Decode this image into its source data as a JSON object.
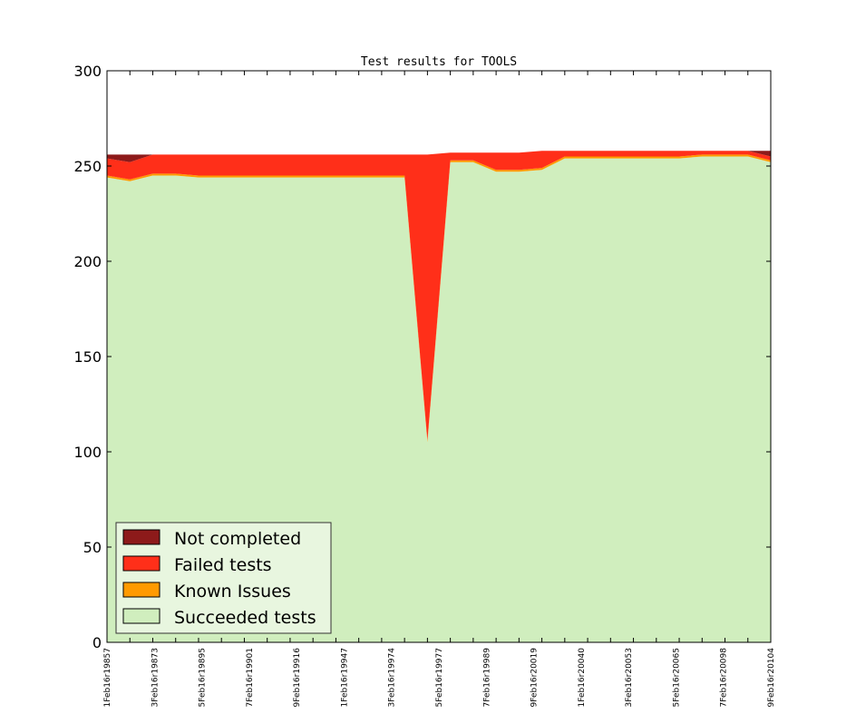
{
  "chart_data": {
    "type": "area",
    "title": "Test results for TOOLS",
    "xlabel": "",
    "ylabel": "",
    "ylim": [
      0,
      300
    ],
    "yticks": [
      0,
      50,
      100,
      150,
      200,
      250,
      300
    ],
    "xtick_labels": [
      "1Feb16r19857",
      "3Feb16r19873",
      "5Feb16r19895",
      "7Feb16r19901",
      "9Feb16r19916",
      "1Feb16r19947",
      "3Feb16r19974",
      "5Feb16r19977",
      "7Feb16r19989",
      "9Feb16r20019",
      "1Feb16r20040",
      "3Feb16r20053",
      "5Feb16r20065",
      "7Feb16r20098",
      "9Feb16r20104"
    ],
    "grid": false,
    "legend_position": "lower-left",
    "stacked": true,
    "series": [
      {
        "name": "Succeeded tests",
        "color": "#d0eebe",
        "values": [
          244,
          242,
          245,
          245,
          244,
          244,
          244,
          244,
          244,
          244,
          244,
          244,
          244,
          244,
          105,
          252,
          252,
          247,
          247,
          248,
          254,
          254,
          254,
          254,
          254,
          254,
          255,
          255,
          255,
          252
        ]
      },
      {
        "name": "Known Issues",
        "color": "#ff9a00",
        "values": [
          1,
          1,
          1,
          1,
          1,
          1,
          1,
          1,
          1,
          1,
          1,
          1,
          1,
          1,
          1,
          1,
          1,
          1,
          1,
          1,
          1,
          1,
          1,
          1,
          1,
          1,
          1,
          1,
          1,
          1
        ]
      },
      {
        "name": "Failed tests",
        "color": "#ff2f19",
        "values": [
          9,
          9,
          10,
          10,
          11,
          11,
          11,
          11,
          11,
          11,
          11,
          11,
          11,
          11,
          150,
          4,
          4,
          9,
          9,
          9,
          3,
          3,
          3,
          3,
          3,
          3,
          2,
          2,
          2,
          2
        ]
      },
      {
        "name": "Not completed",
        "color": "#8d1a1a",
        "values": [
          2,
          4,
          0,
          0,
          0,
          0,
          0,
          0,
          0,
          0,
          0,
          0,
          0,
          0,
          0,
          0,
          0,
          0,
          0,
          0,
          0,
          0,
          0,
          0,
          0,
          0,
          0,
          0,
          0,
          3
        ]
      }
    ]
  }
}
